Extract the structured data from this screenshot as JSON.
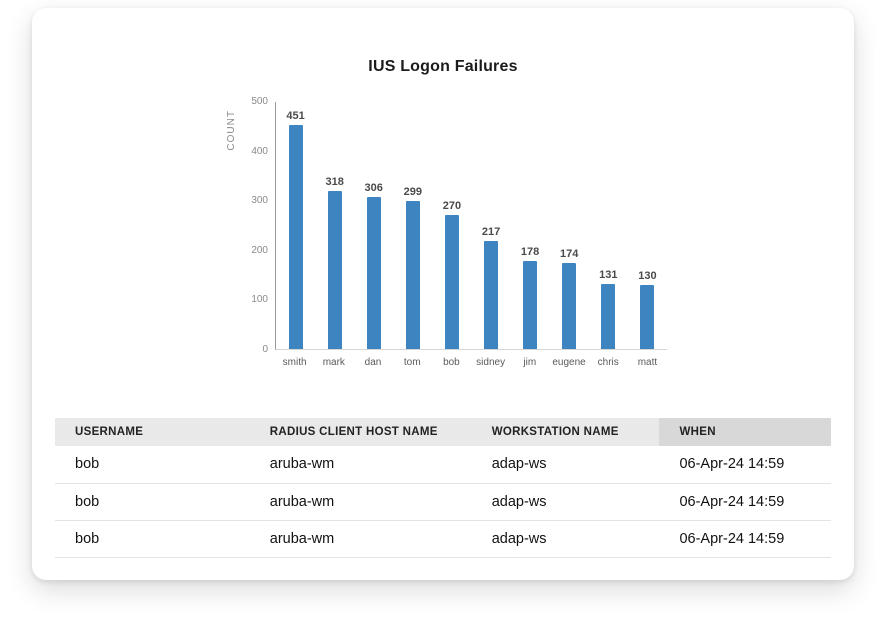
{
  "chart_data": {
    "type": "bar",
    "title": "IUS Logon Failures",
    "ylabel": "COUNT",
    "xlabel": "",
    "categories": [
      "smith",
      "mark",
      "dan",
      "tom",
      "bob",
      "sidney",
      "jim",
      "eugene",
      "chris",
      "matt"
    ],
    "values": [
      451,
      318,
      306,
      299,
      270,
      217,
      178,
      174,
      131,
      130
    ],
    "ylim": [
      0,
      500
    ],
    "yticks": [
      0,
      100,
      200,
      300,
      400,
      500
    ],
    "bar_color": "#3d85c1",
    "grid": false,
    "legend": false
  },
  "table": {
    "columns": [
      "USERNAME",
      "RADIUS CLIENT HOST NAME",
      "WORKSTATION NAME",
      "WHEN"
    ],
    "sorted_column": "WHEN",
    "rows": [
      [
        "bob",
        "aruba-wm",
        "adap-ws",
        "06-Apr-24 14:59"
      ],
      [
        "bob",
        "aruba-wm",
        "adap-ws",
        "06-Apr-24 14:59"
      ],
      [
        "bob",
        "aruba-wm",
        "adap-ws",
        "06-Apr-24 14:59"
      ]
    ]
  }
}
